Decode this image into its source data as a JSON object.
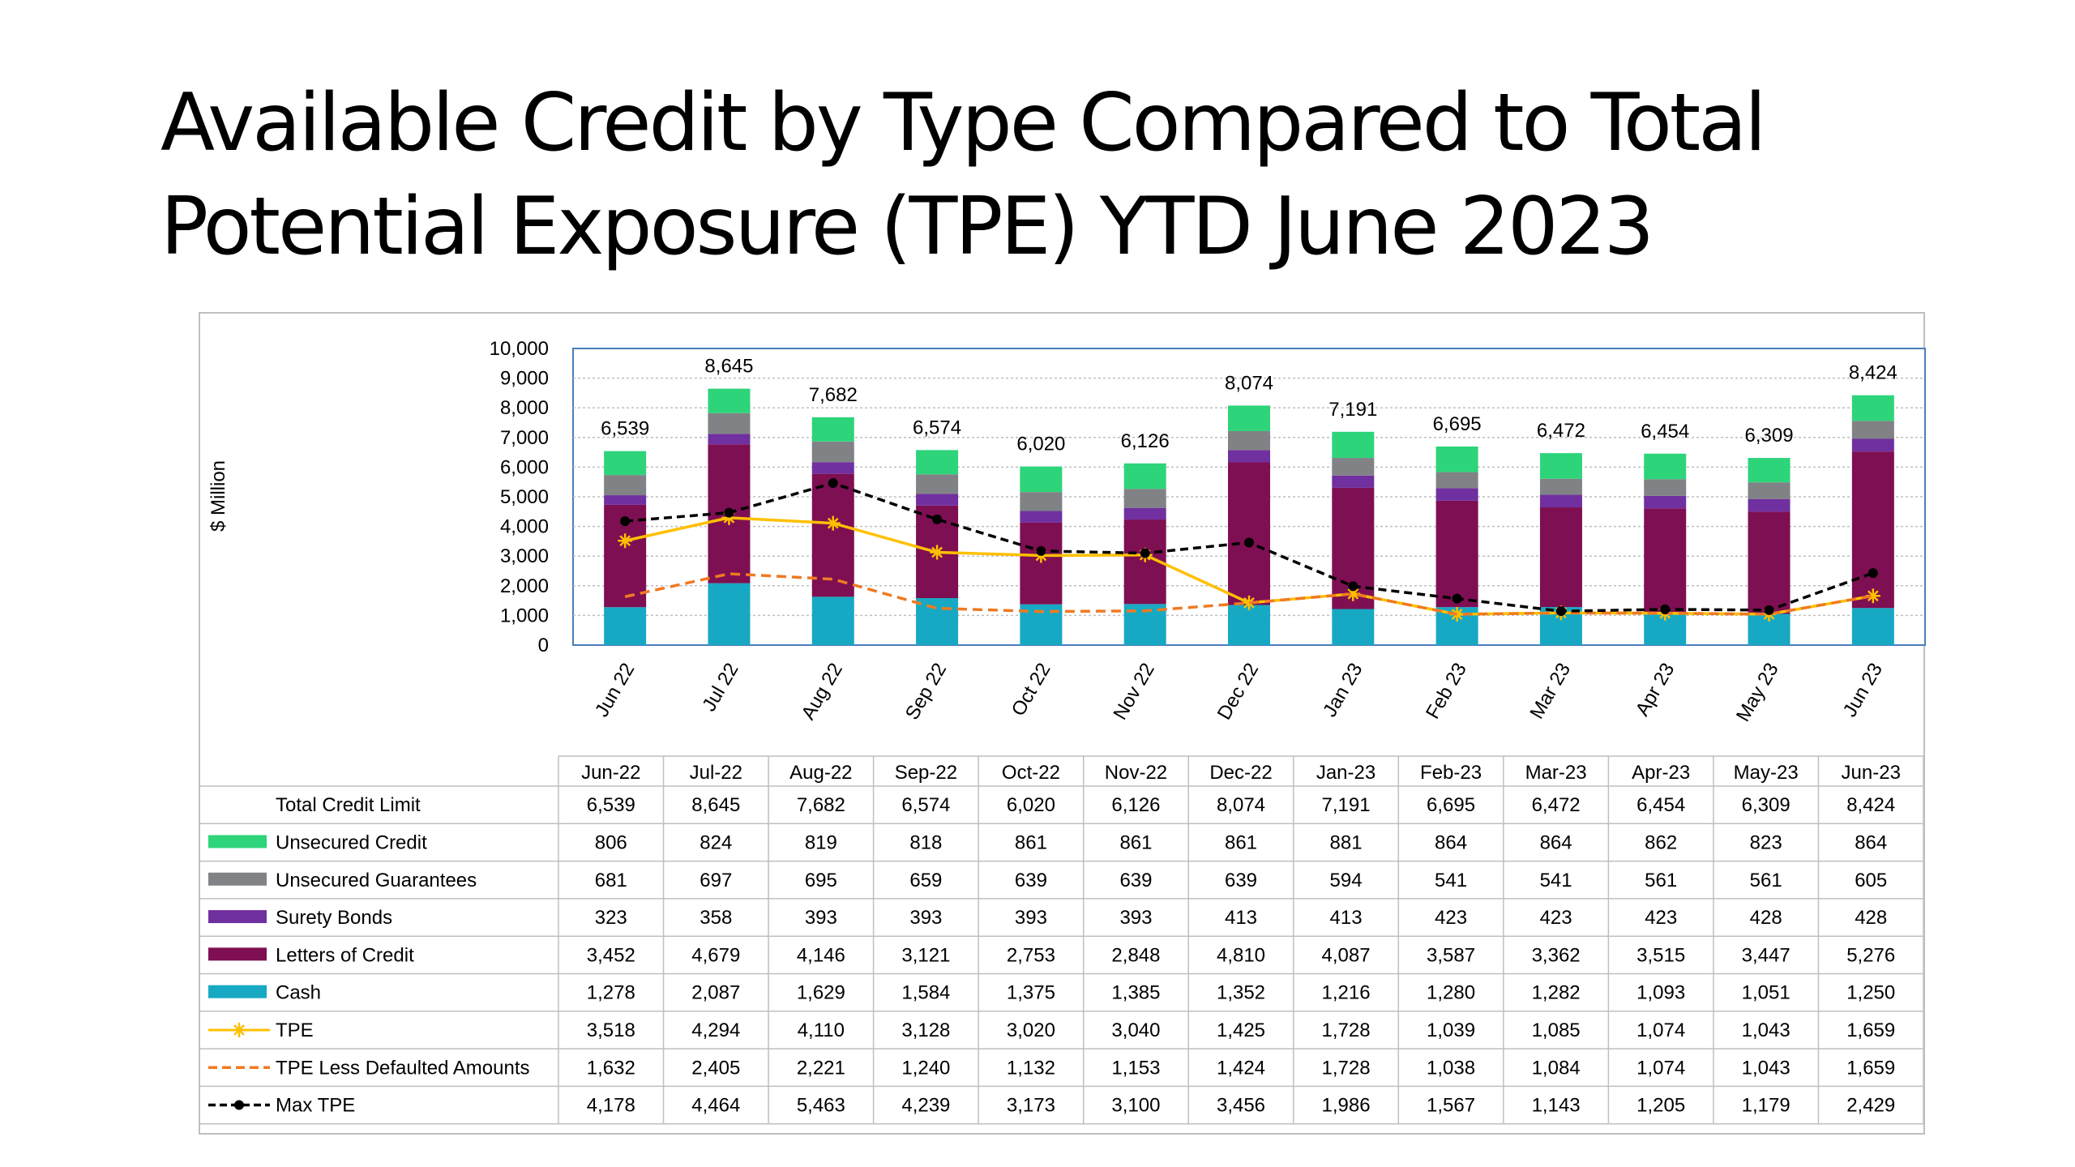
{
  "slide": {
    "title_line1": "Available Credit by Type Compared to Total",
    "title_line2": "Potential Exposure (TPE) YTD June 2023"
  },
  "chart_data": {
    "type": "bar",
    "subtype": "stacked bar with line overlays and data table",
    "ylabel": "$ Million",
    "ylim": [
      0,
      10000
    ],
    "yticks": [
      0,
      1000,
      2000,
      3000,
      4000,
      5000,
      6000,
      7000,
      8000,
      9000,
      10000
    ],
    "ytick_labels": [
      "0",
      "1,000",
      "2,000",
      "3,000",
      "4,000",
      "5,000",
      "6,000",
      "7,000",
      "8,000",
      "9,000",
      "10,000"
    ],
    "grid": true,
    "x_axis_labels": [
      "Jun 22",
      "Jul 22",
      "Aug 22",
      "Sep 22",
      "Oct 22",
      "Nov 22",
      "Dec 22",
      "Jan 23",
      "Feb 23",
      "Mar 23",
      "Apr 23",
      "May 23",
      "Jun 23"
    ],
    "categories": [
      "Jun-22",
      "Jul-22",
      "Aug-22",
      "Sep-22",
      "Oct-22",
      "Nov-22",
      "Dec-22",
      "Jan-23",
      "Feb-23",
      "Mar-23",
      "Apr-23",
      "May-23",
      "Jun-23"
    ],
    "total_label": "Total Credit Limit",
    "totals": [
      6539,
      8645,
      7682,
      6574,
      6020,
      6126,
      8074,
      7191,
      6695,
      6472,
      6454,
      6309,
      8424
    ],
    "total_text": [
      "6,539",
      "8,645",
      "7,682",
      "6,574",
      "6,020",
      "6,126",
      "8,074",
      "7,191",
      "6,695",
      "6,472",
      "6,454",
      "6,309",
      "8,424"
    ],
    "bar_series": [
      {
        "name": "Cash",
        "color": "#17a9c3",
        "values": [
          1278,
          2087,
          1629,
          1584,
          1375,
          1385,
          1352,
          1216,
          1280,
          1282,
          1093,
          1051,
          1250
        ]
      },
      {
        "name": "Letters of Credit",
        "color": "#7e0f52",
        "values": [
          3452,
          4679,
          4146,
          3121,
          2753,
          2848,
          4810,
          4087,
          3587,
          3362,
          3515,
          3447,
          5276
        ]
      },
      {
        "name": "Surety Bonds",
        "color": "#7030a0",
        "values": [
          323,
          358,
          393,
          393,
          393,
          393,
          413,
          413,
          423,
          423,
          423,
          428,
          428
        ]
      },
      {
        "name": "Unsecured Guarantees",
        "color": "#808285",
        "values": [
          681,
          697,
          695,
          659,
          639,
          639,
          639,
          594,
          541,
          541,
          561,
          561,
          605
        ]
      },
      {
        "name": "Unsecured Credit",
        "color": "#2ed47a",
        "values": [
          806,
          824,
          819,
          818,
          861,
          861,
          861,
          881,
          864,
          864,
          862,
          823,
          864
        ]
      }
    ],
    "line_series": [
      {
        "name": "TPE",
        "color": "#ffc000",
        "style": "solid-star",
        "values": [
          3518,
          4294,
          4110,
          3128,
          3020,
          3040,
          1425,
          1728,
          1039,
          1085,
          1074,
          1043,
          1659
        ]
      },
      {
        "name": "TPE Less Defaulted Amounts",
        "color": "#f07a22",
        "style": "dashed",
        "values": [
          1632,
          2405,
          2221,
          1240,
          1132,
          1153,
          1424,
          1728,
          1038,
          1084,
          1074,
          1043,
          1659
        ]
      },
      {
        "name": "Max TPE",
        "color": "#000000",
        "style": "dashed-dot",
        "values": [
          4178,
          4464,
          5463,
          4239,
          3173,
          3100,
          3456,
          1986,
          1567,
          1143,
          1205,
          1179,
          2429
        ]
      }
    ],
    "table": {
      "header": [
        "Jun-22",
        "Jul-22",
        "Aug-22",
        "Sep-22",
        "Oct-22",
        "Nov-22",
        "Dec-22",
        "Jan-23",
        "Feb-23",
        "Mar-23",
        "Apr-23",
        "May-23",
        "Jun-23"
      ],
      "rows": [
        {
          "label": "Total Credit Limit",
          "legend": "none",
          "color": "",
          "cells": [
            "6,539",
            "8,645",
            "7,682",
            "6,574",
            "6,020",
            "6,126",
            "8,074",
            "7,191",
            "6,695",
            "6,472",
            "6,454",
            "6,309",
            "8,424"
          ]
        },
        {
          "label": "Unsecured Credit",
          "legend": "box",
          "color": "#2ed47a",
          "cells": [
            "806",
            "824",
            "819",
            "818",
            "861",
            "861",
            "861",
            "881",
            "864",
            "864",
            "862",
            "823",
            "864"
          ]
        },
        {
          "label": "Unsecured Guarantees",
          "legend": "box",
          "color": "#808285",
          "cells": [
            "681",
            "697",
            "695",
            "659",
            "639",
            "639",
            "639",
            "594",
            "541",
            "541",
            "561",
            "561",
            "605"
          ]
        },
        {
          "label": "Surety Bonds",
          "legend": "box",
          "color": "#7030a0",
          "cells": [
            "323",
            "358",
            "393",
            "393",
            "393",
            "393",
            "413",
            "413",
            "423",
            "423",
            "423",
            "428",
            "428"
          ]
        },
        {
          "label": "Letters of Credit",
          "legend": "box",
          "color": "#7e0f52",
          "cells": [
            "3,452",
            "4,679",
            "4,146",
            "3,121",
            "2,753",
            "2,848",
            "4,810",
            "4,087",
            "3,587",
            "3,362",
            "3,515",
            "3,447",
            "5,276"
          ]
        },
        {
          "label": "Cash",
          "legend": "box",
          "color": "#17a9c3",
          "cells": [
            "1,278",
            "2,087",
            "1,629",
            "1,584",
            "1,375",
            "1,385",
            "1,352",
            "1,216",
            "1,280",
            "1,282",
            "1,093",
            "1,051",
            "1,250"
          ]
        },
        {
          "label": "TPE",
          "legend": "star-line",
          "color": "#ffc000",
          "cells": [
            "3,518",
            "4,294",
            "4,110",
            "3,128",
            "3,020",
            "3,040",
            "1,425",
            "1,728",
            "1,039",
            "1,085",
            "1,074",
            "1,043",
            "1,659"
          ]
        },
        {
          "label": "TPE Less Defaulted Amounts",
          "legend": "dash-line",
          "color": "#f07a22",
          "cells": [
            "1,632",
            "2,405",
            "2,221",
            "1,240",
            "1,132",
            "1,153",
            "1,424",
            "1,728",
            "1,038",
            "1,084",
            "1,074",
            "1,043",
            "1,659"
          ]
        },
        {
          "label": "Max TPE",
          "legend": "dot-line",
          "color": "#000000",
          "cells": [
            "4,178",
            "4,464",
            "5,463",
            "4,239",
            "3,173",
            "3,100",
            "3,456",
            "1,986",
            "1,567",
            "1,143",
            "1,205",
            "1,179",
            "2,429"
          ]
        }
      ]
    }
  }
}
